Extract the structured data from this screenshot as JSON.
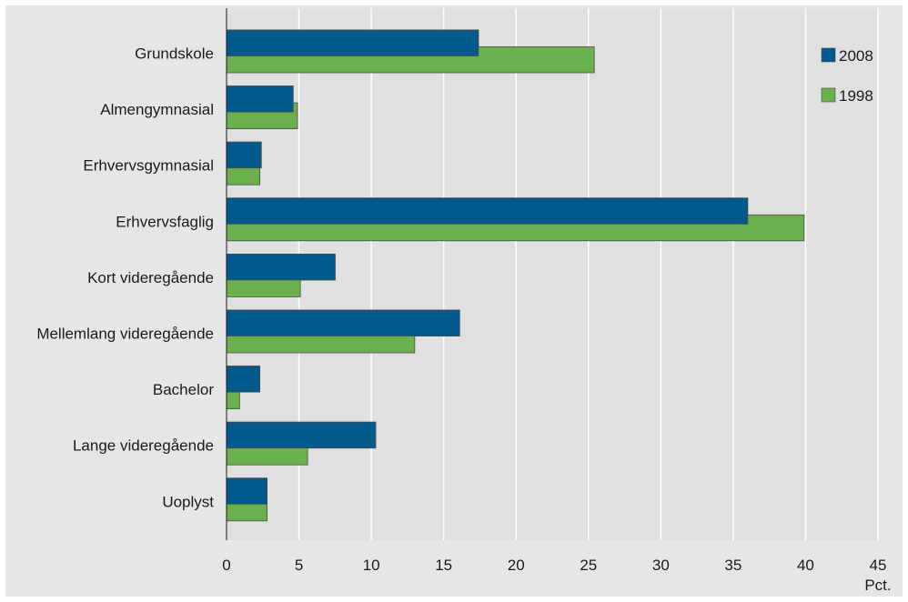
{
  "chart_data": {
    "type": "bar",
    "orientation": "horizontal",
    "categories": [
      "Grundskole",
      "Almengymnasial",
      "Erhvervsgymnasial",
      "Erhvervsfaglig",
      "Kort videregående",
      "Mellemlang videregående",
      "Bachelor",
      "Lange videregående",
      "Uoplyst"
    ],
    "series": [
      {
        "name": "2008",
        "color": "#005a8c",
        "values": [
          17.4,
          4.6,
          2.4,
          36.0,
          7.5,
          16.1,
          2.3,
          10.3,
          2.8
        ]
      },
      {
        "name": "1998",
        "color": "#6ab04c",
        "values": [
          25.4,
          4.9,
          2.3,
          39.9,
          5.1,
          13.0,
          0.9,
          5.6,
          2.8
        ]
      }
    ],
    "xlim": [
      0,
      45
    ],
    "xticks": [
      "0",
      "5",
      "10",
      "15",
      "20",
      "25",
      "30",
      "35",
      "40",
      "45"
    ],
    "xunit": "Pct.",
    "grid": true,
    "legend_position": "top-right",
    "plot_background": "#e0e0e0",
    "frame_background": "#e6e6e6"
  }
}
